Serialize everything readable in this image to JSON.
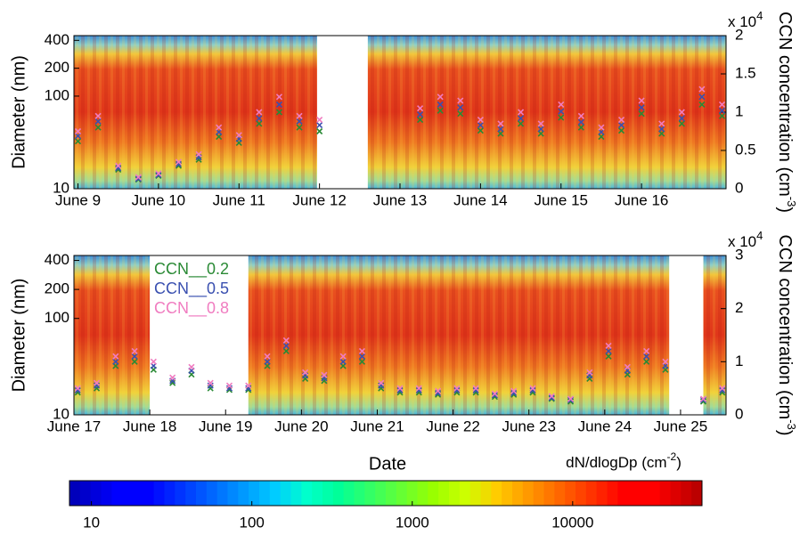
{
  "chart_data": [
    {
      "type": "scatter",
      "ylabel": "Diameter (nm)",
      "y2label": [
        "CCN concentration (cm",
        "-3",
        ")"
      ],
      "y2_multiplier": [
        "x 10",
        "4"
      ],
      "x": [
        9.0,
        9.25,
        9.5,
        9.75,
        10.0,
        10.25,
        10.5,
        10.75,
        11.0,
        11.25,
        11.5,
        11.75,
        12.0,
        12.25,
        12.5,
        12.75,
        13.0,
        13.25,
        13.5,
        13.75,
        14.0,
        14.25,
        14.5,
        14.75,
        15.0,
        15.25,
        15.5,
        15.75,
        16.0,
        16.25,
        16.5,
        16.75,
        17.0
      ],
      "xlim": [
        8.95,
        17.05
      ],
      "xticks": [
        {
          "value": 9,
          "label": "June 9"
        },
        {
          "value": 10,
          "label": "June 10"
        },
        {
          "value": 11,
          "label": "June 11"
        },
        {
          "value": 12,
          "label": "June 12"
        },
        {
          "value": 13,
          "label": "June 13"
        },
        {
          "value": 14,
          "label": "June 14"
        },
        {
          "value": 15,
          "label": "June 15"
        },
        {
          "value": 16,
          "label": "June 16"
        }
      ],
      "ylim": [
        10,
        450
      ],
      "ylog": true,
      "yticks": [
        10,
        100,
        200,
        400
      ],
      "y2lim": [
        0,
        2
      ],
      "y2ticks": [
        0,
        0.5,
        1,
        1.5,
        2
      ],
      "data_gaps": [
        [
          11.97,
          12.6
        ]
      ],
      "series": [
        {
          "color": "#2a8a35",
          "axis": "y2",
          "values": [
            0.62,
            0.8,
            0.25,
            0.12,
            0.17,
            0.3,
            0.38,
            0.68,
            0.6,
            0.85,
            1.0,
            0.8,
            0.75,
            null,
            null,
            null,
            null,
            0.9,
            1.02,
            0.98,
            0.76,
            0.72,
            0.85,
            0.72,
            0.93,
            0.8,
            0.68,
            0.76,
            0.98,
            0.72,
            0.85,
            1.1,
            0.95
          ]
        },
        {
          "color": "#3a50b0",
          "axis": "y2",
          "values": [
            0.69,
            0.88,
            0.27,
            0.13,
            0.18,
            0.32,
            0.41,
            0.74,
            0.65,
            0.92,
            1.1,
            0.88,
            0.83,
            null,
            null,
            null,
            null,
            0.97,
            1.1,
            1.06,
            0.83,
            0.78,
            0.92,
            0.78,
            1.01,
            0.87,
            0.74,
            0.83,
            1.06,
            0.78,
            0.92,
            1.2,
            1.02
          ]
        },
        {
          "color": "#f07cc0",
          "axis": "y2",
          "values": [
            0.75,
            0.95,
            0.3,
            0.15,
            0.2,
            0.35,
            0.45,
            0.8,
            0.7,
            1.0,
            1.2,
            0.95,
            0.9,
            null,
            null,
            null,
            null,
            1.05,
            1.2,
            1.15,
            0.9,
            0.85,
            1.0,
            0.85,
            1.1,
            0.95,
            0.8,
            0.9,
            1.15,
            0.85,
            1.0,
            1.3,
            1.1
          ]
        }
      ]
    },
    {
      "type": "scatter",
      "ylabel": "Diameter (nm)",
      "y2label": [
        "CCN concentration (cm",
        "-3",
        ")"
      ],
      "y2_multiplier": [
        "x 10",
        "4"
      ],
      "xlabel": "Date",
      "x": [
        17.05,
        17.3,
        17.55,
        17.8,
        18.05,
        18.3,
        18.55,
        18.8,
        19.05,
        19.3,
        19.55,
        19.8,
        20.05,
        20.3,
        20.55,
        20.8,
        21.05,
        21.3,
        21.55,
        21.8,
        22.05,
        22.3,
        22.55,
        22.8,
        23.05,
        23.3,
        23.55,
        23.8,
        24.05,
        24.3,
        24.55,
        24.8,
        25.05,
        25.3,
        25.55
      ],
      "xlim": [
        17.0,
        25.6
      ],
      "xticks": [
        {
          "value": 17,
          "label": "June 17"
        },
        {
          "value": 18,
          "label": "June 18"
        },
        {
          "value": 19,
          "label": "June 19"
        },
        {
          "value": 20,
          "label": "June 20"
        },
        {
          "value": 21,
          "label": "June 21"
        },
        {
          "value": 22,
          "label": "June 22"
        },
        {
          "value": 23,
          "label": "June 23"
        },
        {
          "value": 24,
          "label": "June 24"
        },
        {
          "value": 25,
          "label": "June 25"
        }
      ],
      "ylim": [
        10,
        450
      ],
      "ylog": true,
      "yticks": [
        10,
        100,
        200,
        400
      ],
      "y2lim": [
        0,
        3
      ],
      "y2ticks": [
        0,
        1,
        2,
        3
      ],
      "data_gaps": [
        [
          18.0,
          19.3
        ],
        [
          24.85,
          25.3
        ]
      ],
      "legend": "upper left",
      "series": [
        {
          "name": "CCN__0.2",
          "color": "#2a8a35",
          "axis": "y2",
          "values": [
            0.42,
            0.5,
            0.92,
            1.0,
            0.85,
            0.6,
            0.76,
            0.5,
            0.47,
            0.47,
            0.92,
            1.2,
            0.68,
            0.64,
            0.92,
            1.0,
            0.5,
            0.42,
            0.42,
            0.38,
            0.42,
            0.42,
            0.34,
            0.38,
            0.42,
            0.3,
            0.25,
            0.68,
            1.1,
            0.76,
            1.0,
            0.85,
            null,
            0.25,
            0.42
          ]
        },
        {
          "name": "CCN__0.5",
          "color": "#3a50b0",
          "axis": "y2",
          "values": [
            0.46,
            0.55,
            1.0,
            1.1,
            0.92,
            0.64,
            0.83,
            0.55,
            0.5,
            0.5,
            1.0,
            1.3,
            0.74,
            0.69,
            1.0,
            1.1,
            0.55,
            0.46,
            0.46,
            0.41,
            0.46,
            0.46,
            0.37,
            0.41,
            0.46,
            0.32,
            0.28,
            0.74,
            1.2,
            0.83,
            1.1,
            0.92,
            null,
            0.28,
            0.46
          ]
        },
        {
          "name": "CCN__0.8",
          "color": "#f07cc0",
          "axis": "y2",
          "values": [
            0.5,
            0.6,
            1.1,
            1.2,
            1.0,
            0.7,
            0.9,
            0.6,
            0.55,
            0.55,
            1.1,
            1.4,
            0.8,
            0.75,
            1.1,
            1.2,
            0.6,
            0.5,
            0.5,
            0.45,
            0.5,
            0.5,
            0.4,
            0.45,
            0.5,
            0.35,
            0.3,
            0.8,
            1.3,
            0.9,
            1.2,
            1.0,
            null,
            0.3,
            0.5
          ]
        }
      ]
    },
    {
      "type": "colorbar",
      "label": [
        "dN/dlogDp (cm",
        "-2",
        ")"
      ],
      "xlim": [
        7.3,
        64000
      ],
      "xlog": true,
      "xticks": [
        10,
        100,
        1000,
        10000
      ]
    }
  ]
}
